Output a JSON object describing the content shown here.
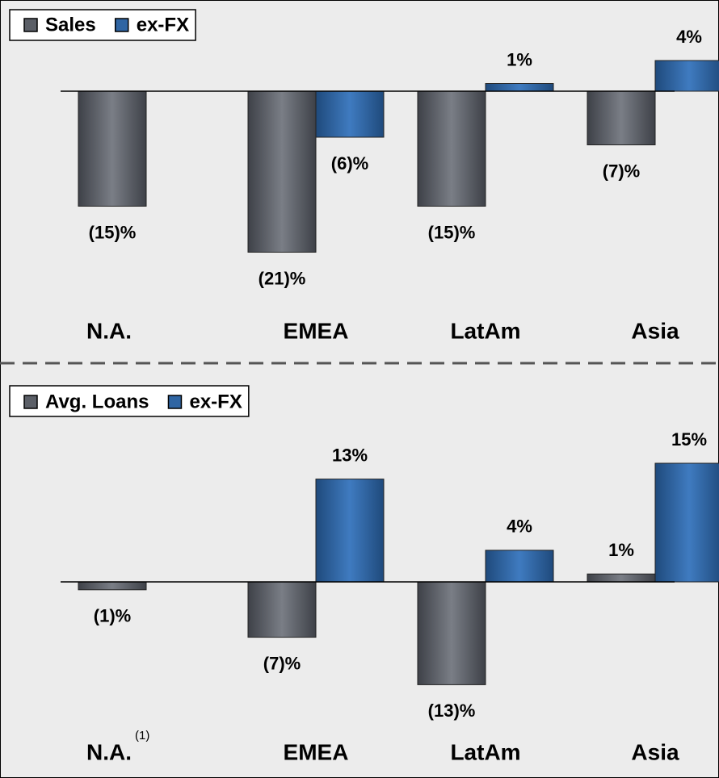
{
  "chart_data": [
    {
      "type": "bar",
      "categories": [
        "N.A.",
        "EMEA",
        "LatAm",
        "Asia"
      ],
      "series": [
        {
          "name": "Sales",
          "color": "#5b5f67",
          "values": [
            -15,
            -21,
            -15,
            -7
          ],
          "value_labels": [
            "(15)%",
            "(21)%",
            "(15)%",
            "(7)%"
          ]
        },
        {
          "name": "ex-FX",
          "color": "#2f65a3",
          "values": [
            null,
            -6,
            1,
            4
          ],
          "value_labels": [
            null,
            "(6)%",
            "1%",
            "4%"
          ]
        }
      ],
      "ylim": [
        -25,
        5
      ]
    },
    {
      "type": "bar",
      "categories": [
        "N.A.",
        "EMEA",
        "LatAm",
        "Asia"
      ],
      "annotations": [
        "(1)"
      ],
      "series": [
        {
          "name": "Avg. Loans",
          "color": "#5b5f67",
          "values": [
            -1,
            -7,
            -13,
            1
          ],
          "value_labels": [
            "(1)%",
            "(7)%",
            "(13)%",
            "1%"
          ]
        },
        {
          "name": "ex-FX",
          "color": "#2f65a3",
          "values": [
            null,
            13,
            4,
            15
          ],
          "value_labels": [
            null,
            "13%",
            "4%",
            "15%"
          ]
        }
      ],
      "ylim": [
        -15,
        20
      ]
    }
  ]
}
